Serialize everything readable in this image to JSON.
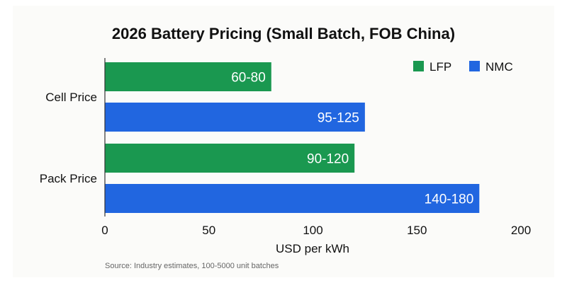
{
  "chart_data": {
    "type": "bar",
    "orientation": "horizontal",
    "title": "2026 Battery Pricing (Small Batch, FOB China)",
    "xlabel": "USD per kWh",
    "ylabel": "",
    "xlim": [
      0,
      200
    ],
    "xticks": [
      "0",
      "50",
      "100",
      "150",
      "200"
    ],
    "grid": false,
    "legend_position": "top-right",
    "categories": [
      "Cell Price",
      "Pack Price"
    ],
    "series": [
      {
        "name": "LFP",
        "color": "#1a9850",
        "low": [
          60,
          90
        ],
        "high": [
          80,
          120
        ],
        "labels": [
          "60-80",
          "90-120"
        ]
      },
      {
        "name": "NMC",
        "color": "#2166e0",
        "low": [
          95,
          140
        ],
        "high": [
          125,
          180
        ],
        "labels": [
          "95-125",
          "140-180"
        ]
      }
    ],
    "source_note": "Source: Industry estimates, 100-5000 unit batches"
  }
}
